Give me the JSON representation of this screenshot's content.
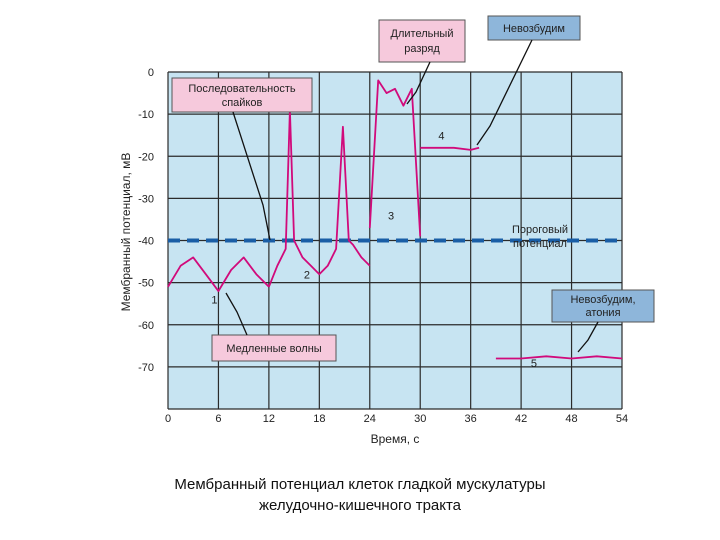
{
  "chart_data": {
    "type": "line",
    "xlabel": "Время, с",
    "ylabel": "Мембранный потенциал, мВ",
    "xlim": [
      0,
      54
    ],
    "ylim": [
      -80,
      0
    ],
    "xticks": [
      0,
      6,
      12,
      18,
      24,
      30,
      36,
      42,
      48,
      54
    ],
    "yticks": [
      0,
      -10,
      -20,
      -30,
      -40,
      -50,
      -60,
      -70
    ],
    "grid": true,
    "threshold": {
      "y": -40,
      "label": "Пороговый потенциал"
    },
    "series": [
      {
        "name": "1",
        "x": [
          0,
          1.5,
          3,
          4.5,
          6,
          7.5,
          9,
          10.5,
          12
        ],
        "y": [
          -51,
          -46,
          -44,
          -48,
          -52,
          -47,
          -44,
          -48,
          -51
        ]
      },
      {
        "name": "2",
        "x": [
          12,
          13,
          14,
          14.5,
          15,
          16,
          17,
          18,
          19,
          20,
          20.8,
          21.5,
          22,
          23,
          24
        ],
        "y": [
          -51,
          -46,
          -42,
          -9,
          -40,
          -44,
          -46,
          -48,
          -46,
          -42,
          -13,
          -40,
          -41,
          -44,
          -46
        ]
      },
      {
        "name": "3",
        "x": [
          24,
          25,
          26,
          27,
          28,
          29,
          30
        ],
        "y": [
          -37,
          -2,
          -5,
          -4,
          -8,
          -4,
          -39
        ]
      },
      {
        "name": "4",
        "x": [
          30,
          34,
          36,
          37
        ],
        "y": [
          -18,
          -18,
          -18.5,
          -18
        ]
      },
      {
        "name": "5",
        "x": [
          39,
          42,
          45,
          48,
          51,
          54
        ],
        "y": [
          -68,
          -68,
          -67.5,
          -68,
          -67.5,
          -68
        ]
      }
    ],
    "labels": {
      "slow_waves": "Медленные волны",
      "spike_train": "Последовательность спайков",
      "long_discharge": "Длительный разряд",
      "non_excitable": "Невозбудим",
      "non_excitable_atony": "Невозбудим, атония"
    },
    "colors": {
      "plot_bg": "#c7e4f2",
      "trace": "#d10a7b",
      "threshold": "#1a5ea6",
      "grid": "#2b2b2b",
      "label_pink": "#f6c9dc",
      "label_blue": "#8eb6da"
    }
  },
  "caption": {
    "line1": "Мембранный потенциал клеток гладкой мускулатуры",
    "line2": "желудочно-кишечного тракта"
  }
}
